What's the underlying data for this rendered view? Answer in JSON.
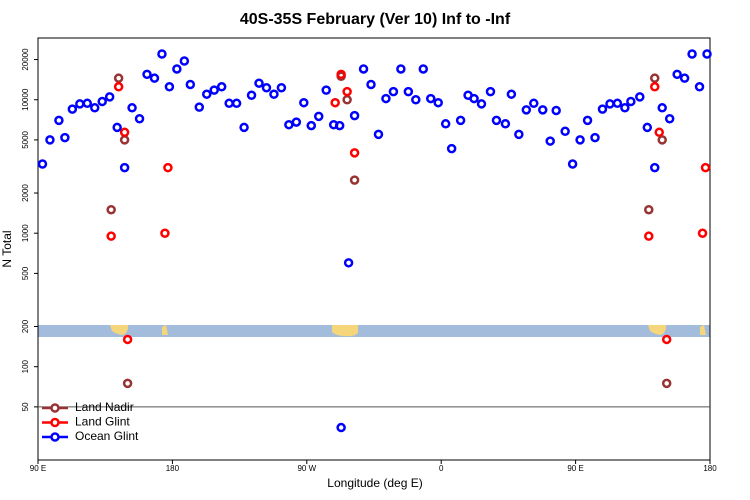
{
  "chart_data": {
    "type": "scatter",
    "title": "40S-35S February (Ver 10)   Inf to -Inf",
    "x_label": "Longitude (deg E)",
    "y_label": "N Total",
    "xlim": [
      90,
      540
    ],
    "xticks": [
      {
        "value": 90,
        "label": "90 E"
      },
      {
        "value": 180,
        "label": "180"
      },
      {
        "value": 270,
        "label": "90 W"
      },
      {
        "value": 360,
        "label": "0"
      },
      {
        "value": 450,
        "label": "90 E"
      },
      {
        "value": 540,
        "label": "180"
      }
    ],
    "ylim": [
      20,
      29000
    ],
    "y_log": true,
    "yticks": [
      50,
      100,
      200,
      500,
      1000,
      2000,
      5000,
      10000,
      20000
    ],
    "legend": "lower left",
    "series": [
      {
        "name": "Land Nadir",
        "color": "#993333",
        "x": [
          139,
          144,
          148,
          150,
          293,
          297,
          302,
          499,
          503,
          508,
          511
        ],
        "values": [
          1500,
          14500,
          5000,
          75,
          15000,
          10000,
          2500,
          1500,
          14500,
          5000,
          75
        ]
      },
      {
        "name": "Land Glint",
        "color": "#ff0000",
        "x": [
          139,
          144,
          148,
          150,
          175,
          177,
          289,
          293,
          297,
          302,
          499,
          503,
          506,
          511,
          535,
          537
        ],
        "values": [
          950,
          12500,
          5700,
          160,
          1000,
          3100,
          9500,
          15500,
          11500,
          4000,
          950,
          12500,
          5700,
          160,
          1000,
          3100
        ]
      },
      {
        "name": "Ocean Glint",
        "color": "#0000ff",
        "x": [
          93,
          98,
          104,
          108,
          113,
          118,
          123,
          128,
          133,
          138,
          143,
          148,
          153,
          158,
          163,
          168,
          173,
          178,
          183,
          188,
          192,
          198,
          203,
          208,
          213,
          218,
          223,
          228,
          233,
          238,
          243,
          248,
          253,
          258,
          263,
          268,
          273,
          278,
          283,
          288,
          292,
          298,
          302,
          308,
          313,
          318,
          323,
          328,
          333,
          338,
          343,
          348,
          353,
          358,
          363,
          367,
          373,
          378,
          382,
          387,
          393,
          397,
          403,
          407,
          412,
          417,
          422,
          428,
          433,
          437,
          443,
          448,
          453,
          458,
          463,
          468,
          473,
          478,
          483,
          487,
          493,
          498,
          503,
          508,
          513,
          518,
          523,
          528,
          533,
          538,
          293
        ],
        "values": [
          3300,
          5000,
          7000,
          5200,
          8500,
          9300,
          9400,
          8700,
          9700,
          10500,
          6200,
          3100,
          8700,
          7200,
          15500,
          14500,
          22000,
          12500,
          17000,
          19500,
          13000,
          8800,
          11000,
          11800,
          12500,
          9400,
          9400,
          6200,
          10800,
          13300,
          12300,
          11000,
          12300,
          6500,
          6800,
          9500,
          6400,
          7500,
          11800,
          6500,
          6400,
          600,
          7600,
          17000,
          13000,
          5500,
          10200,
          11500,
          17000,
          11500,
          10000,
          17000,
          10200,
          9500,
          6600,
          4300,
          7000,
          10800,
          10200,
          9300,
          11500,
          7000,
          6600,
          11000,
          5500,
          8400,
          9400,
          8400,
          4900,
          8300,
          5800,
          3300,
          5000,
          7000,
          5200,
          8500,
          9300,
          9400,
          8700,
          9700,
          10500,
          6200,
          3100,
          8700,
          7200,
          15500,
          14500,
          22000,
          12500,
          22000,
          35
        ]
      }
    ]
  }
}
